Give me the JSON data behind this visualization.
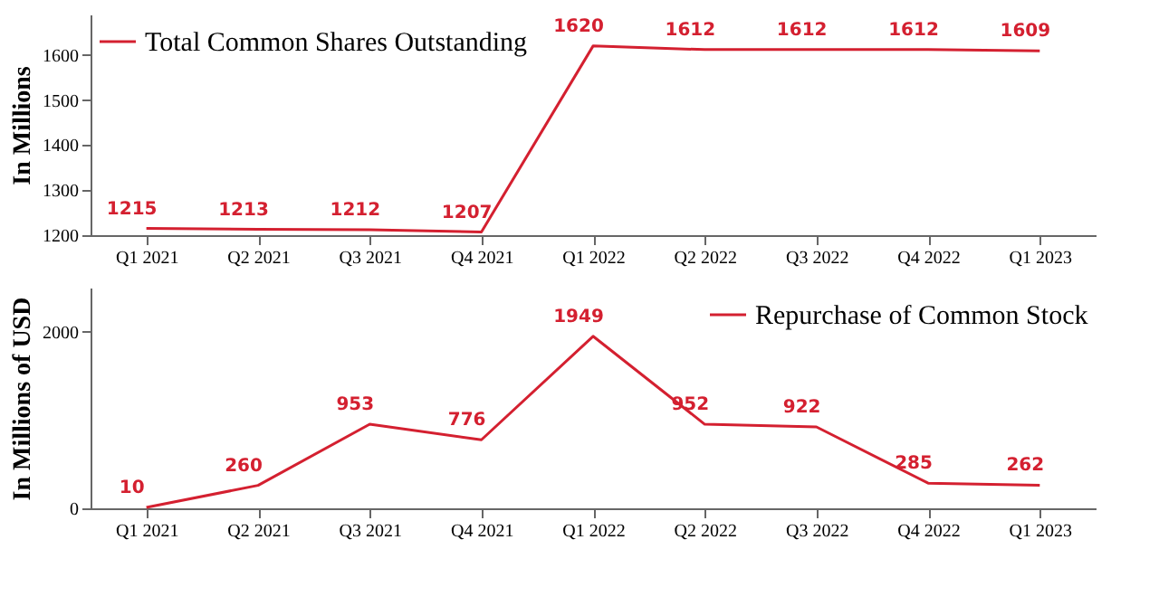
{
  "chart_data": [
    {
      "type": "line",
      "categories": [
        "Q1 2021",
        "Q2 2021",
        "Q3 2021",
        "Q4 2021",
        "Q1 2022",
        "Q2 2022",
        "Q3 2022",
        "Q4 2022",
        "Q1 2023"
      ],
      "series": [
        {
          "name": "Total Common Shares Outstanding",
          "color": "#d42030",
          "values": [
            1215,
            1213,
            1212,
            1207,
            1620,
            1612,
            1612,
            1612,
            1609
          ]
        }
      ],
      "ylabel": "In Millions",
      "ylim": [
        1200,
        1690
      ],
      "yticks": [
        1200,
        1300,
        1400,
        1500,
        1600
      ],
      "data_labels": true,
      "legend": "top left",
      "grid": false,
      "marker": "none",
      "line_style": "solid"
    },
    {
      "type": "line",
      "categories": [
        "Q1 2021",
        "Q2 2021",
        "Q3 2021",
        "Q4 2021",
        "Q1 2022",
        "Q2 2022",
        "Q3 2022",
        "Q4 2022",
        "Q1 2023"
      ],
      "series": [
        {
          "name": "Repurchase of Common Stock",
          "color": "#d42030",
          "values": [
            10,
            260,
            953,
            776,
            1949,
            952,
            922,
            285,
            262
          ]
        }
      ],
      "ylabel": "In Millions of USD",
      "ylim": [
        0,
        2500
      ],
      "yticks": [
        0,
        2000
      ],
      "data_labels": true,
      "legend": "top right",
      "grid": false,
      "marker": "none",
      "line_style": "solid"
    }
  ]
}
